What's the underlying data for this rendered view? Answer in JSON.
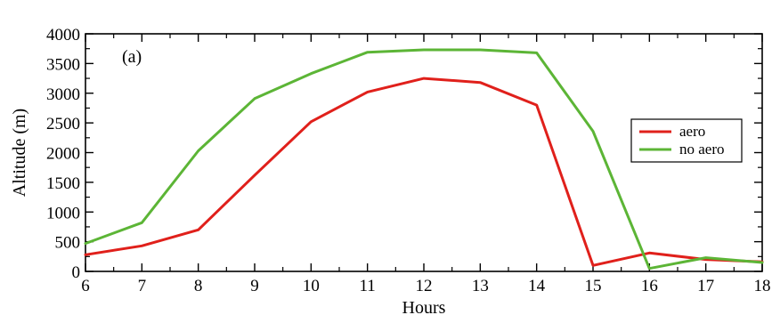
{
  "chart_data": {
    "type": "line",
    "panel_label": "(a)",
    "xlabel": "Hours",
    "ylabel": "Altitude (m)",
    "xlim": [
      6,
      18
    ],
    "ylim": [
      0,
      4000
    ],
    "x_ticks": [
      6,
      7,
      8,
      9,
      10,
      11,
      12,
      13,
      14,
      15,
      16,
      17,
      18
    ],
    "y_ticks": [
      0,
      500,
      1000,
      1500,
      2000,
      2500,
      3000,
      3500,
      4000
    ],
    "x": [
      6,
      7,
      8,
      9,
      10,
      11,
      12,
      13,
      14,
      15,
      16,
      17,
      18
    ],
    "series": [
      {
        "name": "aero",
        "color": "#e0201b",
        "values": [
          280,
          430,
          700,
          1620,
          2520,
          3020,
          3250,
          3180,
          2800,
          100,
          310,
          200,
          160
        ]
      },
      {
        "name": "no aero",
        "color": "#5cb536",
        "values": [
          470,
          820,
          2030,
          2910,
          3330,
          3690,
          3730,
          3730,
          3680,
          2360,
          50,
          230,
          150
        ]
      }
    ],
    "grid": false,
    "legend_position": "right"
  }
}
